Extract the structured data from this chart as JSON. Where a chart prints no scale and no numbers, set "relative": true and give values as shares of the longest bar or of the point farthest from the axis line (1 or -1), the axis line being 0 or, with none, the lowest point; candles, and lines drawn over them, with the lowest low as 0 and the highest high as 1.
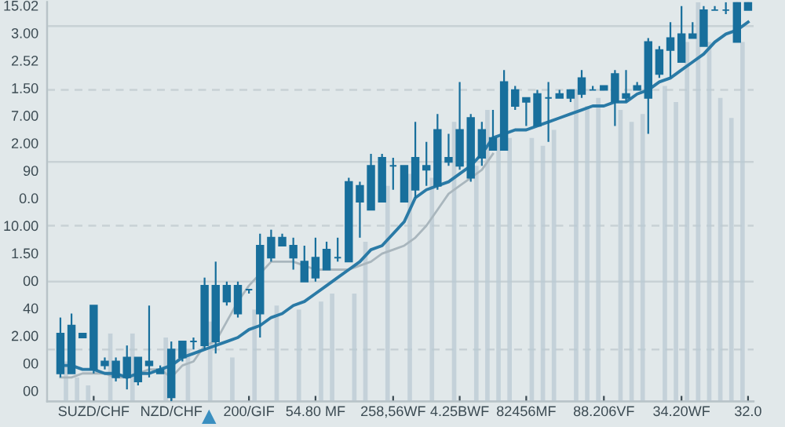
{
  "chart_data": {
    "type": "candlestick",
    "relative": true,
    "color": "#186f9c",
    "categories": [
      null,
      null,
      null,
      "SUZD/CHF",
      null,
      null,
      null,
      null,
      null,
      null,
      "NZD/CHF",
      null,
      null,
      null,
      null,
      null,
      null,
      "200/GIF",
      null,
      null,
      null,
      null,
      null,
      "54.80 MF",
      null,
      null,
      null,
      null,
      null,
      null,
      "258,56WF",
      null,
      null,
      null,
      null,
      null,
      "4.25BWF",
      null,
      null,
      null,
      null,
      null,
      "82456MF",
      null,
      null,
      null,
      null,
      null,
      null,
      "88.206VF",
      null,
      null,
      null,
      null,
      null,
      null,
      "34.20WF",
      null,
      null,
      null,
      null,
      null,
      "32.0"
    ],
    "ohlc": [
      [
        0.07,
        0.21,
        0.06,
        0.17
      ],
      [
        0.07,
        0.22,
        0.07,
        0.19
      ],
      [
        0.16,
        0.17,
        0.16,
        0.17
      ],
      [
        0.08,
        0.24,
        0.07,
        0.24
      ],
      [
        0.09,
        0.11,
        0.08,
        0.1
      ],
      [
        0.06,
        0.11,
        0.05,
        0.1
      ],
      [
        0.06,
        0.14,
        0.03,
        0.11
      ],
      [
        0.05,
        0.11,
        0.04,
        0.11
      ],
      [
        0.09,
        0.24,
        0.06,
        0.1
      ],
      [
        0.07,
        0.09,
        0.07,
        0.08
      ],
      [
        0.01,
        0.15,
        0,
        0.13
      ],
      [
        0.11,
        0.15,
        0.1,
        0.15
      ],
      [
        0.15,
        0.16,
        0.13,
        0.15
      ],
      [
        0.14,
        0.31,
        0.13,
        0.29
      ],
      [
        0.15,
        0.35,
        0.12,
        0.29
      ],
      [
        0.25,
        0.3,
        0.24,
        0.29
      ],
      [
        0.22,
        0.3,
        0.21,
        0.29
      ],
      [
        0.28,
        0.28,
        0.27,
        0.28
      ],
      [
        0.22,
        0.42,
        0.16,
        0.39
      ],
      [
        0.36,
        0.43,
        0.35,
        0.41
      ],
      [
        0.39,
        0.42,
        0.39,
        0.41
      ],
      [
        0.36,
        0.41,
        0.33,
        0.39
      ],
      [
        0.3,
        0.39,
        0.3,
        0.35
      ],
      [
        0.31,
        0.41,
        0.3,
        0.36
      ],
      [
        0.33,
        0.4,
        0.33,
        0.38
      ],
      [
        0.36,
        0.41,
        0.35,
        0.36
      ],
      [
        0.35,
        0.56,
        0.35,
        0.55
      ],
      [
        0.5,
        0.55,
        0.41,
        0.54
      ],
      [
        0.48,
        0.62,
        0.48,
        0.59
      ],
      [
        0.5,
        0.62,
        0.5,
        0.61
      ],
      [
        0.59,
        0.61,
        0.53,
        0.59
      ],
      [
        0.5,
        0.59,
        0.5,
        0.59
      ],
      [
        0.53,
        0.7,
        0.51,
        0.61
      ],
      [
        0.58,
        0.65,
        0.54,
        0.59
      ],
      [
        0.54,
        0.72,
        0.53,
        0.68
      ],
      [
        0.6,
        0.67,
        0.59,
        0.61
      ],
      [
        0.59,
        0.8,
        0.58,
        0.68
      ],
      [
        0.56,
        0.72,
        0.55,
        0.71
      ],
      [
        0.61,
        0.7,
        0.59,
        0.68
      ],
      [
        0.63,
        0.73,
        0.63,
        0.66
      ],
      [
        0.63,
        0.83,
        0.63,
        0.8
      ],
      [
        0.74,
        0.79,
        0.73,
        0.78
      ],
      [
        0.75,
        0.76,
        0.69,
        0.76
      ],
      [
        0.69,
        0.78,
        0.69,
        0.77
      ],
      [
        0.76,
        0.8,
        0.65,
        0.76
      ],
      [
        0.76,
        0.78,
        0.76,
        0.77
      ],
      [
        0.76,
        0.78,
        0.75,
        0.78
      ],
      [
        0.77,
        0.83,
        0.76,
        0.81
      ],
      [
        0.78,
        0.79,
        0.78,
        0.78
      ],
      [
        0.78,
        0.79,
        0.78,
        0.79
      ],
      [
        0.75,
        0.83,
        0.69,
        0.82
      ],
      [
        0.76,
        0.83,
        0.75,
        0.77
      ],
      [
        0.78,
        0.8,
        0.78,
        0.79
      ],
      [
        0.76,
        0.91,
        0.67,
        0.9
      ],
      [
        0.82,
        0.89,
        0.81,
        0.88
      ],
      [
        0.88,
        0.95,
        0.81,
        0.91
      ],
      [
        0.85,
        0.99,
        0.85,
        0.92
      ],
      [
        0.91,
        0.95,
        0.91,
        0.92
      ],
      [
        0.89,
        0.99,
        0.89,
        0.98
      ],
      [
        0.98,
        0.99,
        0.98,
        0.98
      ],
      [
        0.98,
        1,
        0.97,
        0.98
      ],
      [
        0.9,
        1,
        0.9,
        1
      ],
      [
        0.98,
        1,
        0.98,
        1
      ]
    ],
    "series": [
      {
        "type": "bar",
        "color": "#b9cad3",
        "values": [
          0.1,
          0.06,
          0.04,
          null,
          0.17,
          null,
          0.17,
          null,
          null,
          0.16,
          null,
          0.13,
          null,
          0.2,
          null,
          0.11,
          null,
          0.23,
          null,
          0.24,
          null,
          0.23,
          null,
          0.25,
          0.27,
          null,
          0.27,
          0.4,
          null,
          0.54,
          null,
          0.57,
          null,
          0.56,
          null,
          0.7,
          null,
          0.59,
          0.73,
          0.66,
          0.66,
          null,
          0.66,
          0.64,
          0.68,
          null,
          0.78,
          0.74,
          0.76,
          null,
          0.73,
          0.7,
          0.72,
          null,
          0.79,
          0.75,
          0.9,
          1.0,
          0.9,
          0.76,
          0.71,
          0.9,
          null
        ]
      },
      {
        "type": "line",
        "color": "#a9b6bd",
        "values": [
          0.06,
          0.06,
          0.07,
          0.07,
          0.07,
          0.06,
          0.06,
          0.07,
          0.08,
          0.08,
          0.06,
          0.09,
          0.1,
          0.14,
          0.15,
          0.2,
          0.25,
          0.29,
          0.32,
          0.35,
          0.35,
          0.35,
          0.34,
          0.33,
          0.33,
          0.33,
          0.33,
          0.34,
          0.35,
          0.37,
          0.38,
          0.39,
          0.41,
          0.44,
          0.48,
          0.52,
          0.54,
          0.56,
          0.58,
          0.62,
          null,
          null,
          null,
          null,
          null,
          null,
          null,
          null,
          null,
          null,
          null,
          null,
          null,
          null,
          null,
          null,
          null,
          null,
          null,
          null,
          null,
          null,
          null
        ]
      },
      {
        "type": "line",
        "color": "#2a7aa6",
        "values": [
          0.09,
          0.09,
          0.08,
          0.08,
          0.07,
          0.07,
          0.06,
          0.07,
          0.07,
          0.08,
          0.09,
          0.11,
          0.12,
          0.13,
          0.14,
          0.15,
          0.16,
          0.18,
          0.19,
          0.21,
          0.22,
          0.24,
          0.25,
          0.27,
          0.29,
          0.31,
          0.33,
          0.35,
          0.38,
          0.39,
          0.42,
          0.45,
          0.51,
          0.53,
          0.54,
          0.55,
          0.57,
          0.59,
          0.62,
          0.66,
          0.67,
          0.68,
          0.68,
          0.69,
          0.7,
          0.71,
          0.72,
          0.73,
          0.74,
          0.74,
          0.75,
          0.75,
          0.77,
          0.78,
          0.8,
          0.81,
          0.83,
          0.85,
          0.87,
          0.9,
          0.92,
          0.93,
          0.95
        ]
      }
    ],
    "annotations": [
      "15.02",
      "3.00",
      "2.52",
      "1.50",
      "7.00",
      "2.00",
      "90",
      "0.0",
      "10.00",
      "1.50",
      "00",
      "40",
      "2.00",
      "00",
      "00"
    ],
    "ref_lines": [
      {
        "axis": "y",
        "value": 0.94,
        "color": "#c8d1d5",
        "line_style": "solid"
      },
      {
        "axis": "y",
        "value": 0.78,
        "color": "#c8d1d5",
        "line_style": "dashed"
      },
      {
        "axis": "y",
        "value": 0.6,
        "color": "#c8d1d5",
        "line_style": "solid"
      },
      {
        "axis": "y",
        "value": 0.44,
        "color": "#c8d1d5",
        "line_style": "dashed"
      },
      {
        "axis": "y",
        "value": 0.3,
        "color": "#c8d1d5",
        "line_style": "solid"
      },
      {
        "axis": "y",
        "value": 0.13,
        "color": "#c8d1d5",
        "line_style": "dashed"
      }
    ]
  }
}
